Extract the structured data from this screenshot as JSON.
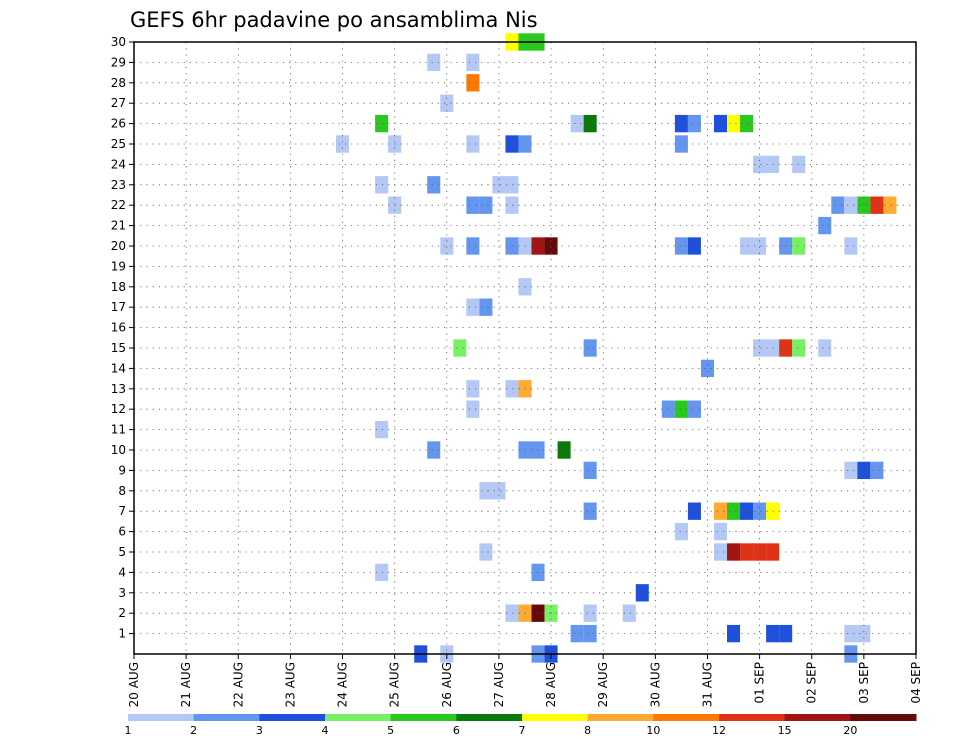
{
  "chart_data": {
    "type": "heatmap",
    "title": "GEFS 6hr padavine po ansamblima Nis",
    "x_tick_labels": [
      "20 AUG",
      "21 AUG",
      "22 AUG",
      "23 AUG",
      "24 AUG",
      "25 AUG",
      "26 AUG",
      "27 AUG",
      "28 AUG",
      "29 AUG",
      "30 AUG",
      "31 AUG",
      "01 SEP",
      "02 SEP",
      "03 SEP",
      "04 SEP"
    ],
    "y_tick_labels": [
      "1",
      "2",
      "3",
      "4",
      "5",
      "6",
      "7",
      "8",
      "9",
      "10",
      "11",
      "12",
      "13",
      "14",
      "15",
      "16",
      "17",
      "18",
      "19",
      "20",
      "21",
      "22",
      "23",
      "24",
      "25",
      "26",
      "27",
      "28",
      "29",
      "30"
    ],
    "x_unit": "days since 20 AUG",
    "xlim": [
      0,
      15
    ],
    "ylim": [
      0,
      30
    ],
    "grid": true,
    "colorbar": {
      "labels": [
        "1",
        "2",
        "3",
        "4",
        "5",
        "6",
        "7",
        "8",
        "10",
        "12",
        "15",
        "20"
      ],
      "colors": [
        "#b4c8f5",
        "#6496f0",
        "#1e50dc",
        "#78f064",
        "#28c81e",
        "#0a780a",
        "#ffff00",
        "#ffaa32",
        "#ff7800",
        "#e03214",
        "#a01414",
        "#640a0a"
      ]
    },
    "cells": [
      {
        "x": 7.25,
        "y": 30,
        "c": 6
      },
      {
        "x": 7.5,
        "y": 30,
        "c": 4
      },
      {
        "x": 7.75,
        "y": 30,
        "c": 4
      },
      {
        "x": 5.75,
        "y": 29,
        "c": 0
      },
      {
        "x": 6.5,
        "y": 29,
        "c": 0
      },
      {
        "x": 6.5,
        "y": 28,
        "c": 8
      },
      {
        "x": 6.0,
        "y": 27,
        "c": 0
      },
      {
        "x": 4.75,
        "y": 26,
        "c": 4
      },
      {
        "x": 8.5,
        "y": 26,
        "c": 0
      },
      {
        "x": 8.75,
        "y": 26,
        "c": 5
      },
      {
        "x": 10.5,
        "y": 26,
        "c": 2
      },
      {
        "x": 10.75,
        "y": 26,
        "c": 1
      },
      {
        "x": 11.25,
        "y": 26,
        "c": 2
      },
      {
        "x": 11.5,
        "y": 26,
        "c": 6
      },
      {
        "x": 11.75,
        "y": 26,
        "c": 4
      },
      {
        "x": 4.0,
        "y": 25,
        "c": 0
      },
      {
        "x": 5.0,
        "y": 25,
        "c": 0
      },
      {
        "x": 6.5,
        "y": 25,
        "c": 0
      },
      {
        "x": 7.25,
        "y": 25,
        "c": 2
      },
      {
        "x": 7.5,
        "y": 25,
        "c": 1
      },
      {
        "x": 10.5,
        "y": 25,
        "c": 1
      },
      {
        "x": 12.0,
        "y": 24,
        "c": 0
      },
      {
        "x": 12.25,
        "y": 24,
        "c": 0
      },
      {
        "x": 12.75,
        "y": 24,
        "c": 0
      },
      {
        "x": 4.75,
        "y": 23,
        "c": 0
      },
      {
        "x": 5.75,
        "y": 23,
        "c": 1
      },
      {
        "x": 7.0,
        "y": 23,
        "c": 0
      },
      {
        "x": 7.25,
        "y": 23,
        "c": 0
      },
      {
        "x": 5.0,
        "y": 22,
        "c": 0
      },
      {
        "x": 6.5,
        "y": 22,
        "c": 1
      },
      {
        "x": 6.75,
        "y": 22,
        "c": 1
      },
      {
        "x": 7.25,
        "y": 22,
        "c": 0
      },
      {
        "x": 13.5,
        "y": 22,
        "c": 1
      },
      {
        "x": 13.75,
        "y": 22,
        "c": 0
      },
      {
        "x": 14.0,
        "y": 22,
        "c": 4
      },
      {
        "x": 14.25,
        "y": 22,
        "c": 9
      },
      {
        "x": 14.5,
        "y": 22,
        "c": 7
      },
      {
        "x": 13.25,
        "y": 21,
        "c": 1
      },
      {
        "x": 6.0,
        "y": 20,
        "c": 0
      },
      {
        "x": 6.5,
        "y": 20,
        "c": 1
      },
      {
        "x": 7.25,
        "y": 20,
        "c": 1
      },
      {
        "x": 7.5,
        "y": 20,
        "c": 0
      },
      {
        "x": 7.75,
        "y": 20,
        "c": 10
      },
      {
        "x": 8.0,
        "y": 20,
        "c": 11
      },
      {
        "x": 10.5,
        "y": 20,
        "c": 1
      },
      {
        "x": 10.75,
        "y": 20,
        "c": 2
      },
      {
        "x": 11.75,
        "y": 20,
        "c": 0
      },
      {
        "x": 12.0,
        "y": 20,
        "c": 0
      },
      {
        "x": 12.5,
        "y": 20,
        "c": 1
      },
      {
        "x": 12.75,
        "y": 20,
        "c": 3
      },
      {
        "x": 13.75,
        "y": 20,
        "c": 0
      },
      {
        "x": 7.5,
        "y": 18,
        "c": 0
      },
      {
        "x": 6.5,
        "y": 17,
        "c": 0
      },
      {
        "x": 6.75,
        "y": 17,
        "c": 1
      },
      {
        "x": 6.25,
        "y": 15,
        "c": 3
      },
      {
        "x": 8.75,
        "y": 15,
        "c": 1
      },
      {
        "x": 12.0,
        "y": 15,
        "c": 0
      },
      {
        "x": 12.25,
        "y": 15,
        "c": 0
      },
      {
        "x": 12.5,
        "y": 15,
        "c": 9
      },
      {
        "x": 12.75,
        "y": 15,
        "c": 3
      },
      {
        "x": 13.25,
        "y": 15,
        "c": 0
      },
      {
        "x": 11.0,
        "y": 14,
        "c": 1
      },
      {
        "x": 6.5,
        "y": 13,
        "c": 0
      },
      {
        "x": 7.25,
        "y": 13,
        "c": 0
      },
      {
        "x": 7.5,
        "y": 13,
        "c": 7
      },
      {
        "x": 6.5,
        "y": 12,
        "c": 0
      },
      {
        "x": 10.25,
        "y": 12,
        "c": 1
      },
      {
        "x": 10.5,
        "y": 12,
        "c": 4
      },
      {
        "x": 10.75,
        "y": 12,
        "c": 1
      },
      {
        "x": 4.75,
        "y": 11,
        "c": 0
      },
      {
        "x": 5.75,
        "y": 10,
        "c": 1
      },
      {
        "x": 7.5,
        "y": 10,
        "c": 1
      },
      {
        "x": 7.75,
        "y": 10,
        "c": 1
      },
      {
        "x": 8.25,
        "y": 10,
        "c": 5
      },
      {
        "x": 8.75,
        "y": 9,
        "c": 1
      },
      {
        "x": 13.75,
        "y": 9,
        "c": 0
      },
      {
        "x": 14.0,
        "y": 9,
        "c": 2
      },
      {
        "x": 14.25,
        "y": 9,
        "c": 1
      },
      {
        "x": 6.75,
        "y": 8,
        "c": 0
      },
      {
        "x": 7.0,
        "y": 8,
        "c": 0
      },
      {
        "x": 8.75,
        "y": 7,
        "c": 1
      },
      {
        "x": 10.75,
        "y": 7,
        "c": 2
      },
      {
        "x": 11.25,
        "y": 7,
        "c": 7
      },
      {
        "x": 11.5,
        "y": 7,
        "c": 4
      },
      {
        "x": 11.75,
        "y": 7,
        "c": 2
      },
      {
        "x": 12.0,
        "y": 7,
        "c": 1
      },
      {
        "x": 12.25,
        "y": 7,
        "c": 6
      },
      {
        "x": 10.5,
        "y": 6,
        "c": 0
      },
      {
        "x": 11.25,
        "y": 6,
        "c": 0
      },
      {
        "x": 6.75,
        "y": 5,
        "c": 0
      },
      {
        "x": 11.25,
        "y": 5,
        "c": 0
      },
      {
        "x": 11.5,
        "y": 5,
        "c": 10
      },
      {
        "x": 11.75,
        "y": 5,
        "c": 9
      },
      {
        "x": 12.0,
        "y": 5,
        "c": 9
      },
      {
        "x": 12.25,
        "y": 5,
        "c": 9
      },
      {
        "x": 4.75,
        "y": 4,
        "c": 0
      },
      {
        "x": 7.75,
        "y": 4,
        "c": 1
      },
      {
        "x": 9.75,
        "y": 3,
        "c": 2
      },
      {
        "x": 7.25,
        "y": 2,
        "c": 0
      },
      {
        "x": 7.5,
        "y": 2,
        "c": 7
      },
      {
        "x": 7.75,
        "y": 2,
        "c": 11
      },
      {
        "x": 8.0,
        "y": 2,
        "c": 3
      },
      {
        "x": 8.75,
        "y": 2,
        "c": 0
      },
      {
        "x": 9.5,
        "y": 2,
        "c": 0
      },
      {
        "x": 8.5,
        "y": 1,
        "c": 1
      },
      {
        "x": 8.75,
        "y": 1,
        "c": 1
      },
      {
        "x": 11.5,
        "y": 1,
        "c": 2
      },
      {
        "x": 12.25,
        "y": 1,
        "c": 2
      },
      {
        "x": 12.5,
        "y": 1,
        "c": 2
      },
      {
        "x": 13.75,
        "y": 1,
        "c": 0
      },
      {
        "x": 14.0,
        "y": 1,
        "c": 0
      },
      {
        "x": 5.5,
        "y": 0,
        "c": 2
      },
      {
        "x": 6.0,
        "y": 0,
        "c": 0
      },
      {
        "x": 7.75,
        "y": 0,
        "c": 1
      },
      {
        "x": 8.0,
        "y": 0,
        "c": 2
      },
      {
        "x": 13.75,
        "y": 0,
        "c": 1
      }
    ]
  }
}
